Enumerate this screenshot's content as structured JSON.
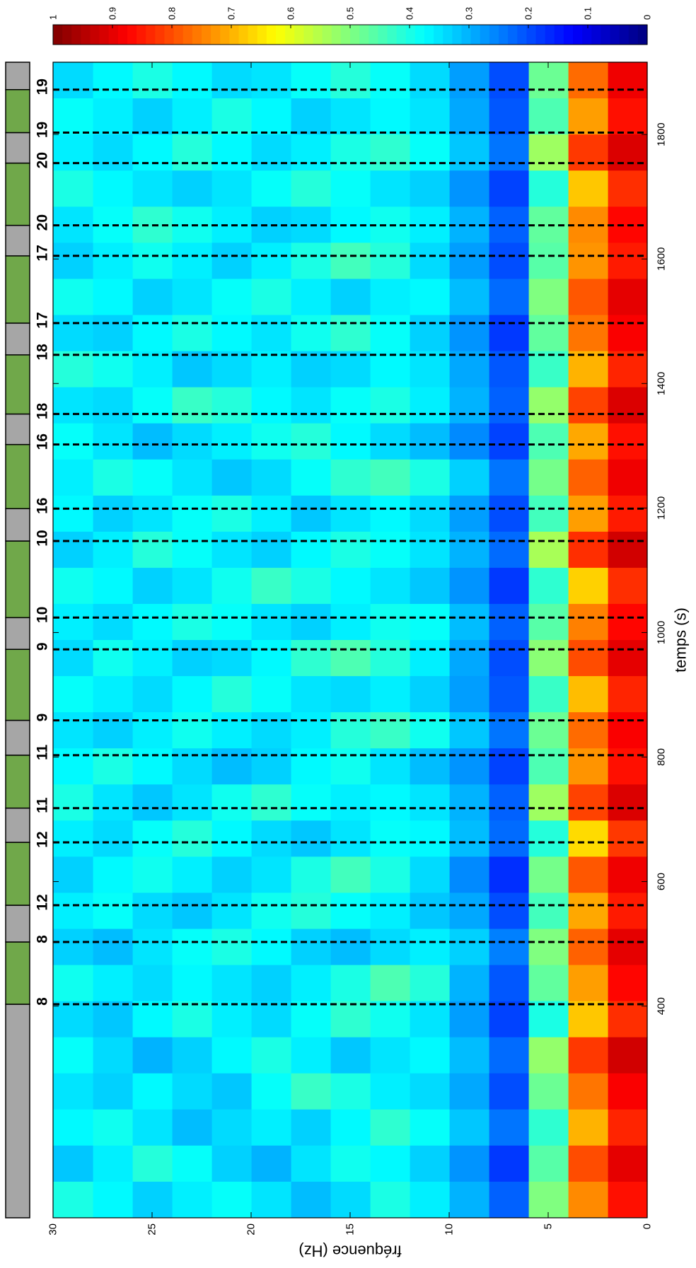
{
  "chart_data": {
    "type": "heatmap",
    "x_label": "temps (s)",
    "y_label": "fréquence (Hz)",
    "xlim": [
      60,
      1916
    ],
    "ylim": [
      0,
      30
    ],
    "xticks": [
      400,
      600,
      800,
      1000,
      1200,
      1400,
      1600,
      1800
    ],
    "yticks": [
      0,
      5,
      10,
      15,
      20,
      25,
      30
    ],
    "colormap": "jet",
    "colorbar": {
      "clim": [
        0,
        1
      ],
      "ticks": [
        0,
        0.1,
        0.2,
        0.3,
        0.4,
        0.5,
        0.6,
        0.7,
        0.8,
        0.9,
        1
      ]
    },
    "x_edges": [
      60,
      118,
      176,
      234,
      292,
      350,
      408,
      466,
      524,
      582,
      640,
      698,
      756,
      814,
      872,
      930,
      988,
      1046,
      1104,
      1162,
      1220,
      1278,
      1336,
      1394,
      1452,
      1510,
      1568,
      1626,
      1684,
      1742,
      1800,
      1858,
      1916
    ],
    "y_edges": [
      0,
      2,
      4,
      6,
      8,
      10,
      12,
      14,
      16,
      18,
      20,
      22,
      24,
      26,
      28,
      30
    ],
    "z": [
      [
        0.86,
        0.74,
        0.5,
        0.22,
        0.3,
        0.36,
        0.4,
        0.34,
        0.31,
        0.35,
        0.38,
        0.36,
        0.33,
        0.37,
        0.4
      ],
      [
        0.9,
        0.8,
        0.46,
        0.18,
        0.27,
        0.33,
        0.37,
        0.39,
        0.35,
        0.3,
        0.33,
        0.38,
        0.41,
        0.36,
        0.32
      ],
      [
        0.84,
        0.7,
        0.42,
        0.24,
        0.32,
        0.38,
        0.42,
        0.37,
        0.33,
        0.36,
        0.34,
        0.31,
        0.35,
        0.39,
        0.37
      ],
      [
        0.88,
        0.76,
        0.48,
        0.2,
        0.29,
        0.34,
        0.36,
        0.4,
        0.43,
        0.38,
        0.32,
        0.34,
        0.37,
        0.33,
        0.35
      ],
      [
        0.92,
        0.82,
        0.52,
        0.23,
        0.31,
        0.37,
        0.35,
        0.32,
        0.36,
        0.4,
        0.37,
        0.33,
        0.3,
        0.34,
        0.38
      ],
      [
        0.83,
        0.68,
        0.4,
        0.19,
        0.28,
        0.35,
        0.39,
        0.42,
        0.38,
        0.34,
        0.36,
        0.4,
        0.37,
        0.32,
        0.34
      ],
      [
        0.87,
        0.72,
        0.47,
        0.21,
        0.3,
        0.41,
        0.45,
        0.4,
        0.36,
        0.33,
        0.35,
        0.37,
        0.34,
        0.36,
        0.39
      ],
      [
        0.9,
        0.78,
        0.5,
        0.25,
        0.33,
        0.36,
        0.34,
        0.31,
        0.33,
        0.37,
        0.4,
        0.38,
        0.35,
        0.31,
        0.33
      ],
      [
        0.85,
        0.71,
        0.44,
        0.2,
        0.29,
        0.32,
        0.36,
        0.38,
        0.41,
        0.39,
        0.35,
        0.32,
        0.34,
        0.38,
        0.36
      ],
      [
        0.89,
        0.79,
        0.49,
        0.17,
        0.26,
        0.34,
        0.4,
        0.44,
        0.4,
        0.35,
        0.33,
        0.36,
        0.39,
        0.37,
        0.33
      ],
      [
        0.82,
        0.66,
        0.41,
        0.23,
        0.31,
        0.37,
        0.38,
        0.35,
        0.32,
        0.34,
        0.37,
        0.41,
        0.38,
        0.34,
        0.36
      ],
      [
        0.91,
        0.81,
        0.53,
        0.22,
        0.3,
        0.35,
        0.37,
        0.36,
        0.38,
        0.42,
        0.39,
        0.35,
        0.32,
        0.35,
        0.4
      ],
      [
        0.86,
        0.73,
        0.45,
        0.19,
        0.27,
        0.31,
        0.35,
        0.39,
        0.37,
        0.33,
        0.31,
        0.34,
        0.37,
        0.4,
        0.37
      ],
      [
        0.88,
        0.77,
        0.48,
        0.24,
        0.32,
        0.39,
        0.43,
        0.41,
        0.36,
        0.34,
        0.36,
        0.39,
        0.36,
        0.33,
        0.35
      ],
      [
        0.84,
        0.69,
        0.43,
        0.21,
        0.28,
        0.33,
        0.36,
        0.34,
        0.35,
        0.38,
        0.41,
        0.37,
        0.34,
        0.36,
        0.38
      ],
      [
        0.9,
        0.8,
        0.51,
        0.2,
        0.29,
        0.36,
        0.41,
        0.45,
        0.42,
        0.37,
        0.34,
        0.33,
        0.36,
        0.39,
        0.34
      ],
      [
        0.87,
        0.75,
        0.46,
        0.22,
        0.31,
        0.38,
        0.39,
        0.36,
        0.33,
        0.35,
        0.38,
        0.4,
        0.37,
        0.34,
        0.36
      ],
      [
        0.83,
        0.67,
        0.42,
        0.18,
        0.27,
        0.32,
        0.35,
        0.37,
        0.4,
        0.43,
        0.39,
        0.35,
        0.33,
        0.37,
        0.39
      ],
      [
        0.92,
        0.83,
        0.54,
        0.23,
        0.3,
        0.35,
        0.38,
        0.4,
        0.37,
        0.33,
        0.35,
        0.38,
        0.41,
        0.36,
        0.33
      ],
      [
        0.85,
        0.72,
        0.44,
        0.2,
        0.28,
        0.34,
        0.37,
        0.35,
        0.32,
        0.36,
        0.4,
        0.38,
        0.35,
        0.33,
        0.37
      ],
      [
        0.89,
        0.78,
        0.49,
        0.24,
        0.33,
        0.4,
        0.44,
        0.42,
        0.38,
        0.34,
        0.32,
        0.35,
        0.38,
        0.4,
        0.36
      ],
      [
        0.86,
        0.71,
        0.45,
        0.19,
        0.26,
        0.31,
        0.34,
        0.37,
        0.41,
        0.39,
        0.36,
        0.34,
        0.31,
        0.35,
        0.38
      ],
      [
        0.91,
        0.81,
        0.52,
        0.22,
        0.3,
        0.36,
        0.4,
        0.38,
        0.35,
        0.37,
        0.41,
        0.43,
        0.38,
        0.34,
        0.35
      ],
      [
        0.84,
        0.7,
        0.43,
        0.21,
        0.29,
        0.35,
        0.37,
        0.34,
        0.33,
        0.36,
        0.34,
        0.32,
        0.36,
        0.39,
        0.41
      ],
      [
        0.88,
        0.76,
        0.47,
        0.18,
        0.27,
        0.33,
        0.38,
        0.42,
        0.39,
        0.35,
        0.37,
        0.4,
        0.37,
        0.33,
        0.34
      ],
      [
        0.9,
        0.79,
        0.5,
        0.23,
        0.31,
        0.37,
        0.36,
        0.33,
        0.36,
        0.4,
        0.38,
        0.35,
        0.33,
        0.37,
        0.39
      ],
      [
        0.85,
        0.73,
        0.46,
        0.2,
        0.28,
        0.34,
        0.41,
        0.44,
        0.4,
        0.36,
        0.33,
        0.36,
        0.39,
        0.36,
        0.33
      ],
      [
        0.87,
        0.74,
        0.47,
        0.22,
        0.3,
        0.36,
        0.39,
        0.37,
        0.34,
        0.33,
        0.36,
        0.39,
        0.42,
        0.38,
        0.35
      ],
      [
        0.83,
        0.68,
        0.41,
        0.19,
        0.27,
        0.33,
        0.35,
        0.38,
        0.41,
        0.38,
        0.35,
        0.33,
        0.35,
        0.37,
        0.4
      ],
      [
        0.91,
        0.82,
        0.53,
        0.24,
        0.32,
        0.38,
        0.42,
        0.4,
        0.36,
        0.34,
        0.37,
        0.41,
        0.37,
        0.34,
        0.36
      ],
      [
        0.86,
        0.72,
        0.45,
        0.21,
        0.29,
        0.35,
        0.37,
        0.35,
        0.33,
        0.37,
        0.4,
        0.36,
        0.33,
        0.36,
        0.38
      ],
      [
        0.89,
        0.77,
        0.48,
        0.2,
        0.28,
        0.34,
        0.38,
        0.41,
        0.38,
        0.35,
        0.34,
        0.37,
        0.4,
        0.37,
        0.34
      ]
    ],
    "events": {
      "times": [
        403,
        503,
        562,
        663,
        718,
        803,
        859,
        973,
        1024,
        1147,
        1199,
        1302,
        1351,
        1446,
        1497,
        1605,
        1654,
        1754,
        1803,
        1872
      ],
      "labels": [
        "8",
        "8",
        "12",
        "12",
        "11",
        "11",
        "9",
        "9",
        "10",
        "10",
        "16",
        "16",
        "18",
        "18",
        "17",
        "17",
        "20",
        "20",
        "19",
        "19"
      ]
    },
    "event_line_color": "#000000",
    "block_colors": [
      "#a6a6a6",
      "#70a84a"
    ]
  }
}
